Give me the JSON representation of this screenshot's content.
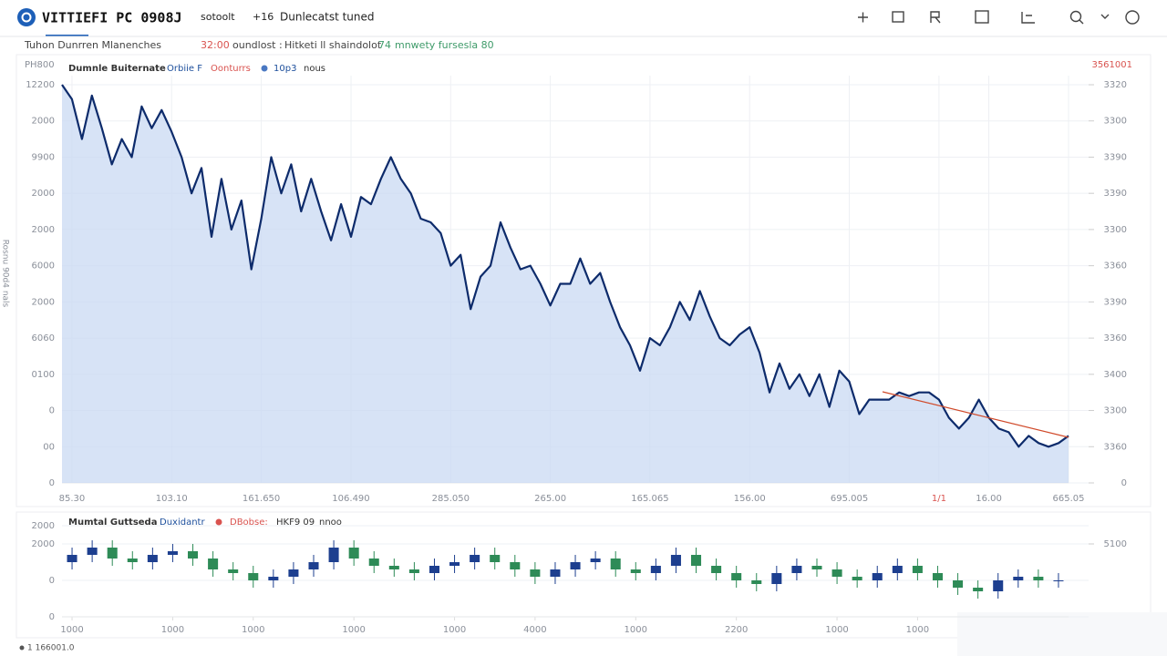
{
  "header": {
    "title": "VITTIEFI PC 0908J",
    "tabs": [
      "sotoolt",
      "+16",
      "Dunlecatst tuned"
    ]
  },
  "info_bar": [
    "Tuhon Dunrren Mlanenches",
    "32:00",
    "oundlost :",
    "Hitketi ll shaindolot",
    "74",
    "mnwety fursesla 80"
  ],
  "chart_data": [
    {
      "type": "line",
      "y_label": "Rosnu 90d4 nals",
      "unit_label": "PH800",
      "top_right_label": "3561001",
      "legend_items": [
        "Orbiie F",
        "Oonturrs",
        "10p3",
        "nous"
      ],
      "series": [
        {
          "name": "Dumnle Buiternate",
          "color": "#0d2b6b",
          "values": [
            11.0,
            10.6,
            9.5,
            10.7,
            9.8,
            8.8,
            9.5,
            9.0,
            10.4,
            9.8,
            10.3,
            9.7,
            9.0,
            8.0,
            8.7,
            6.8,
            8.4,
            7.0,
            7.8,
            5.9,
            7.3,
            9.0,
            8.0,
            8.8,
            7.5,
            8.4,
            7.5,
            6.7,
            7.7,
            6.8,
            7.9,
            7.7,
            8.4,
            9.0,
            8.4,
            8.0,
            7.3,
            7.2,
            6.9,
            6.0,
            6.3,
            4.8,
            5.7,
            6.0,
            7.2,
            6.5,
            5.9,
            6.0,
            5.5,
            4.9,
            5.5,
            5.5,
            6.2,
            5.5,
            5.8,
            5.0,
            4.3,
            3.8,
            3.1,
            4.0,
            3.8,
            4.3,
            5.0,
            4.5,
            5.3,
            4.6,
            4.0,
            3.8,
            4.1,
            4.3,
            3.6,
            2.5,
            3.3,
            2.6,
            3.0,
            2.4,
            3.0,
            2.1,
            3.1,
            2.8,
            1.9,
            2.3,
            2.3,
            2.3,
            2.5,
            2.4,
            2.5,
            2.5,
            2.3,
            1.8,
            1.5,
            1.8,
            2.3,
            1.8,
            1.5,
            1.4,
            1.0,
            1.3,
            1.1,
            1.0,
            1.1,
            1.3
          ]
        }
      ],
      "xlim": [
        0,
        101
      ],
      "xticks": [
        {
          "value": 1,
          "label": "85.30"
        },
        {
          "value": 11,
          "label": "103.10"
        },
        {
          "value": 20,
          "label": "161.650"
        },
        {
          "value": 29,
          "label": "106.490"
        },
        {
          "value": 39,
          "label": "285.050"
        },
        {
          "value": 49,
          "label": "265.00"
        },
        {
          "value": 59,
          "label": "165.065"
        },
        {
          "value": 69,
          "label": "156.00"
        },
        {
          "value": 79,
          "label": "695.005"
        },
        {
          "value": 88,
          "label": "1/1"
        },
        {
          "value": 93,
          "label": "16.00"
        },
        {
          "value": 101,
          "label": "665.05"
        }
      ],
      "ylim": [
        0,
        11
      ],
      "yticks": [
        {
          "value": 11,
          "label": "12200"
        },
        {
          "value": 10,
          "label": "2000"
        },
        {
          "value": 9,
          "label": "9900"
        },
        {
          "value": 8,
          "label": "2000"
        },
        {
          "value": 7,
          "label": "2000"
        },
        {
          "value": 6,
          "label": "6000"
        },
        {
          "value": 5,
          "label": "2000"
        },
        {
          "value": 4,
          "label": "6060"
        },
        {
          "value": 3,
          "label": "0100"
        },
        {
          "value": 2,
          "label": "0"
        },
        {
          "value": 1,
          "label": "00"
        },
        0
      ],
      "y2lim": [
        0,
        11
      ],
      "y2ticks": [
        {
          "value": 11,
          "label": "3320"
        },
        {
          "value": 10,
          "label": "3300"
        },
        {
          "value": 9,
          "label": "3390"
        },
        {
          "value": 8,
          "label": "3390"
        },
        {
          "value": 7,
          "label": "3300"
        },
        {
          "value": 6,
          "label": "3360"
        },
        {
          "value": 5,
          "label": "3390"
        },
        {
          "value": 4,
          "label": "3360"
        },
        {
          "value": 3,
          "label": "3400"
        },
        {
          "value": 2,
          "label": "3300"
        },
        {
          "value": 1,
          "label": "3360"
        },
        0
      ],
      "area_color": "#c9daf3",
      "grid": true
    },
    {
      "type": "candlestick",
      "title": "Mumtal Guttseda",
      "legend_items": [
        "Duxidantr",
        "DBobse:",
        "HKF9 09",
        "nnoo"
      ],
      "up_color": "#1d3f8f",
      "down_color": "#2e8b57",
      "open": [
        1.5,
        1.7,
        1.9,
        1.6,
        1.5,
        1.7,
        1.8,
        1.6,
        1.3,
        1.2,
        1.0,
        1.1,
        1.3,
        1.5,
        1.9,
        1.6,
        1.4,
        1.3,
        1.2,
        1.4,
        1.5,
        1.7,
        1.5,
        1.3,
        1.1,
        1.3,
        1.5,
        1.6,
        1.3,
        1.2,
        1.4,
        1.7,
        1.4,
        1.2,
        1.0,
        0.9,
        1.2,
        1.4,
        1.3,
        1.1,
        1.0,
        1.2,
        1.4,
        1.2,
        1.0,
        0.8,
        0.7,
        1.0,
        1.1,
        1.0
      ],
      "high": [
        1.9,
        2.1,
        2.1,
        1.8,
        1.9,
        2.0,
        2.0,
        1.8,
        1.5,
        1.4,
        1.3,
        1.5,
        1.7,
        2.1,
        2.1,
        1.8,
        1.6,
        1.5,
        1.6,
        1.7,
        1.9,
        1.9,
        1.7,
        1.5,
        1.5,
        1.7,
        1.8,
        1.8,
        1.5,
        1.6,
        1.9,
        1.9,
        1.6,
        1.4,
        1.2,
        1.4,
        1.6,
        1.6,
        1.5,
        1.3,
        1.4,
        1.6,
        1.6,
        1.4,
        1.2,
        1.0,
        1.2,
        1.3,
        1.3,
        1.2
      ],
      "low": [
        1.3,
        1.5,
        1.4,
        1.3,
        1.3,
        1.5,
        1.4,
        1.1,
        1.0,
        0.8,
        0.8,
        0.9,
        1.1,
        1.3,
        1.4,
        1.2,
        1.1,
        1.0,
        1.0,
        1.2,
        1.3,
        1.3,
        1.1,
        0.9,
        0.9,
        1.1,
        1.3,
        1.1,
        1.0,
        1.0,
        1.2,
        1.2,
        1.0,
        0.8,
        0.7,
        0.7,
        1.0,
        1.1,
        0.9,
        0.8,
        0.8,
        1.0,
        1.0,
        0.8,
        0.6,
        0.5,
        0.5,
        0.8,
        0.8,
        0.8
      ],
      "close": [
        1.7,
        1.9,
        1.6,
        1.5,
        1.7,
        1.8,
        1.6,
        1.3,
        1.2,
        1.0,
        1.1,
        1.3,
        1.5,
        1.9,
        1.6,
        1.4,
        1.3,
        1.2,
        1.4,
        1.5,
        1.7,
        1.5,
        1.3,
        1.1,
        1.3,
        1.5,
        1.6,
        1.3,
        1.2,
        1.4,
        1.7,
        1.4,
        1.2,
        1.0,
        0.9,
        1.2,
        1.4,
        1.3,
        1.1,
        1.0,
        1.2,
        1.4,
        1.2,
        1.0,
        0.8,
        0.7,
        1.0,
        1.1,
        1.0,
        1.0
      ],
      "xticks": [
        {
          "value": 0,
          "label": "1000"
        },
        {
          "value": 5,
          "label": "1000"
        },
        {
          "value": 9,
          "label": "1000"
        },
        {
          "value": 14,
          "label": "1000"
        },
        {
          "value": 19,
          "label": "1000"
        },
        {
          "value": 23,
          "label": "4000"
        },
        {
          "value": 28,
          "label": "1000"
        },
        {
          "value": 33,
          "label": "2200"
        },
        {
          "value": 38,
          "label": "1000"
        },
        {
          "value": 42,
          "label": "1000"
        }
      ],
      "ylim": [
        0,
        2.5
      ],
      "yticks": [
        {
          "value": 2.5,
          "label": "2000"
        },
        {
          "value": 2,
          "label": "2000"
        },
        {
          "value": 1,
          "label": "0"
        },
        0
      ],
      "y2ticks": [
        {
          "value": 2,
          "label": "5100"
        }
      ],
      "grid": true
    }
  ],
  "footer": {
    "status": "1 166001.0"
  }
}
